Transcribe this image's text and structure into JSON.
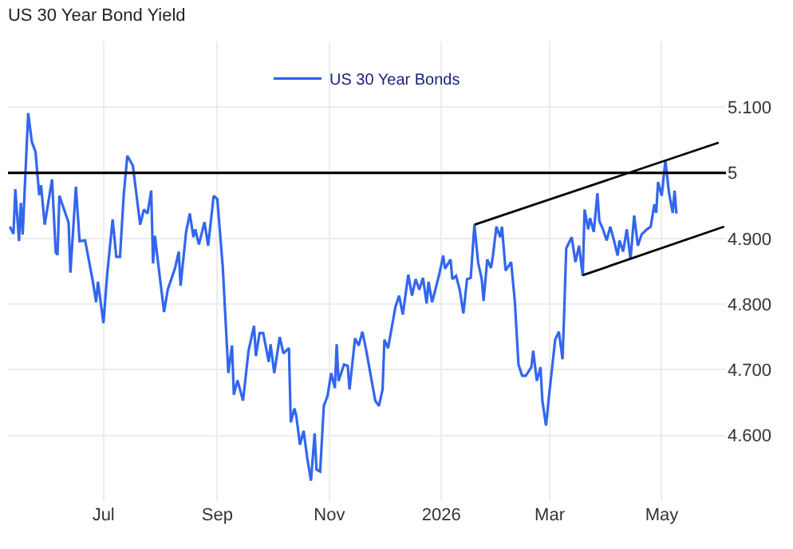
{
  "chart_data": {
    "type": "line",
    "title": "US 30 Year Bond Yield",
    "x": [
      "2025-05-11",
      "2025-05-13",
      "2025-05-14",
      "2025-05-16",
      "2025-05-17",
      "2025-05-18",
      "2025-05-21",
      "2025-05-23",
      "2025-05-25",
      "2025-05-27",
      "2025-05-28",
      "2025-05-30",
      "2025-06-03",
      "2025-06-05",
      "2025-06-06",
      "2025-06-07",
      "2025-06-12",
      "2025-06-13",
      "2025-06-16",
      "2025-06-18",
      "2025-06-21",
      "2025-06-25",
      "2025-06-27",
      "2025-06-28",
      "2025-07-01",
      "2025-07-03",
      "2025-07-06",
      "2025-07-08",
      "2025-07-10",
      "2025-07-12",
      "2025-07-14",
      "2025-07-17",
      "2025-07-21",
      "2025-07-23",
      "2025-07-25",
      "2025-07-27",
      "2025-07-28",
      "2025-07-29",
      "2025-08-01",
      "2025-08-03",
      "2025-08-05",
      "2025-08-09",
      "2025-08-11",
      "2025-08-12",
      "2025-08-15",
      "2025-08-17",
      "2025-08-19",
      "2025-08-20",
      "2025-08-22",
      "2025-08-25",
      "2025-08-27",
      "2025-08-30",
      "2025-09-01",
      "2025-09-04",
      "2025-09-07",
      "2025-09-09",
      "2025-09-10",
      "2025-09-12",
      "2025-09-15",
      "2025-09-18",
      "2025-09-21",
      "2025-09-22",
      "2025-09-24",
      "2025-09-26",
      "2025-09-29",
      "2025-09-30",
      "2025-10-02",
      "2025-10-05",
      "2025-10-07",
      "2025-10-10",
      "2025-10-11",
      "2025-10-13",
      "2025-10-14",
      "2025-10-16",
      "2025-10-18",
      "2025-10-20",
      "2025-10-22",
      "2025-10-24",
      "2025-10-25",
      "2025-10-27",
      "2025-10-29",
      "2025-10-31",
      "2025-11-02",
      "2025-11-04",
      "2025-11-05",
      "2025-11-06",
      "2025-11-09",
      "2025-11-11",
      "2025-11-12",
      "2025-11-15",
      "2025-11-17",
      "2025-11-19",
      "2025-11-21",
      "2025-11-26",
      "2025-11-28",
      "2025-11-30",
      "2025-12-01",
      "2025-12-03",
      "2025-12-07",
      "2025-12-09",
      "2025-12-11",
      "2025-12-14",
      "2025-12-16",
      "2025-12-18",
      "2025-12-20",
      "2025-12-22",
      "2025-12-24",
      "2025-12-25",
      "2025-12-27",
      "2025-12-31",
      "2026-01-02",
      "2026-01-03",
      "2026-01-06",
      "2026-01-07",
      "2026-01-09",
      "2026-01-11",
      "2026-01-13",
      "2026-01-15",
      "2026-01-17",
      "2026-01-19",
      "2026-01-21",
      "2026-01-23",
      "2026-01-24",
      "2026-01-26",
      "2026-01-28",
      "2026-01-29",
      "2026-01-31",
      "2026-02-02",
      "2026-02-03",
      "2026-02-05",
      "2026-02-08",
      "2026-02-10",
      "2026-02-12",
      "2026-02-14",
      "2026-02-16",
      "2026-02-19",
      "2026-02-20",
      "2026-02-22",
      "2026-02-24",
      "2026-02-25",
      "2026-02-27",
      "2026-03-01",
      "2026-03-04",
      "2026-03-06",
      "2026-03-08",
      "2026-03-09",
      "2026-03-10",
      "2026-03-13",
      "2026-03-15",
      "2026-03-17",
      "2026-03-19",
      "2026-03-20",
      "2026-03-22",
      "2026-03-23",
      "2026-03-25",
      "2026-03-27",
      "2026-03-28",
      "2026-03-30",
      "2026-04-01",
      "2026-04-03",
      "2026-04-05",
      "2026-04-07",
      "2026-04-08",
      "2026-04-10",
      "2026-04-12",
      "2026-04-14",
      "2026-04-16",
      "2026-04-18",
      "2026-04-20",
      "2026-04-23",
      "2026-04-25",
      "2026-04-27",
      "2026-04-28",
      "2026-04-29",
      "2026-05-01",
      "2026-05-03",
      "2026-05-05",
      "2026-05-07",
      "2026-05-08",
      "2026-05-09"
    ],
    "series": [
      {
        "name": "US 30 Year Bonds",
        "color": "#3366ee",
        "values": [
          4.918,
          4.907,
          4.975,
          4.896,
          4.954,
          4.906,
          5.091,
          5.047,
          5.032,
          4.966,
          4.981,
          4.921,
          4.99,
          4.879,
          4.875,
          4.965,
          4.924,
          4.848,
          4.979,
          4.896,
          4.897,
          4.838,
          4.803,
          4.834,
          4.771,
          4.845,
          4.929,
          4.872,
          4.872,
          4.965,
          5.026,
          5.011,
          4.921,
          4.944,
          4.938,
          4.973,
          4.862,
          4.904,
          4.834,
          4.788,
          4.822,
          4.855,
          4.88,
          4.828,
          4.91,
          4.938,
          4.902,
          4.914,
          4.891,
          4.925,
          4.889,
          4.965,
          4.96,
          4.855,
          4.695,
          4.737,
          4.662,
          4.684,
          4.653,
          4.729,
          4.767,
          4.721,
          4.756,
          4.756,
          4.712,
          4.739,
          4.695,
          4.75,
          4.725,
          4.733,
          4.62,
          4.641,
          4.63,
          4.586,
          4.607,
          4.565,
          4.531,
          4.603,
          4.548,
          4.545,
          4.645,
          4.66,
          4.695,
          4.672,
          4.739,
          4.683,
          4.708,
          4.706,
          4.67,
          4.748,
          4.737,
          4.758,
          4.731,
          4.653,
          4.645,
          4.67,
          4.746,
          4.733,
          4.796,
          4.813,
          4.784,
          4.845,
          4.813,
          4.838,
          4.822,
          4.84,
          4.801,
          4.834,
          4.803,
          4.847,
          4.874,
          4.854,
          4.868,
          4.838,
          4.843,
          4.822,
          4.786,
          4.838,
          4.84,
          4.921,
          4.864,
          4.838,
          4.805,
          4.868,
          4.855,
          4.872,
          4.918,
          4.902,
          4.918,
          4.851,
          4.864,
          4.805,
          4.708,
          4.691,
          4.691,
          4.704,
          4.729,
          4.683,
          4.704,
          4.653,
          4.615,
          4.67,
          4.746,
          4.758,
          4.716,
          4.796,
          4.885,
          4.902,
          4.864,
          4.889,
          4.843,
          4.944,
          4.914,
          4.931,
          4.91,
          4.969,
          4.927,
          4.914,
          4.897,
          4.918,
          4.897,
          4.874,
          4.897,
          4.88,
          4.914,
          4.868,
          4.935,
          4.889,
          4.906,
          4.914,
          4.918,
          4.952,
          4.939,
          4.986,
          4.965,
          5.019,
          4.969,
          4.939,
          4.973,
          4.938
        ]
      },
      {
        "type": "line",
        "color": "#000000",
        "x": [
          "2026-01-19",
          "2026-06-01"
        ],
        "values": [
          4.921,
          5.046
        ]
      },
      {
        "type": "line",
        "color": "#000000",
        "x": [
          "2026-03-19",
          "2026-06-04"
        ],
        "values": [
          4.844,
          4.918
        ]
      }
    ],
    "xlim": [
      "2025-05-10",
      "2026-06-05"
    ],
    "xticks": [
      {
        "value": "2025-07-01",
        "label": "Jul"
      },
      {
        "value": "2025-09-01",
        "label": "Sep"
      },
      {
        "value": "2025-11-01",
        "label": "Nov"
      },
      {
        "value": "2026-01-01",
        "label": "2026"
      },
      {
        "value": "2026-03-01",
        "label": "Mar"
      },
      {
        "value": "2026-05-01",
        "label": "May"
      }
    ],
    "ylim": [
      4.5,
      5.2
    ],
    "yticks": [
      {
        "value": 4.6,
        "label": "4.600"
      },
      {
        "value": 4.7,
        "label": "4.700"
      },
      {
        "value": 4.8,
        "label": "4.800"
      },
      {
        "value": 4.9,
        "label": "4.900"
      },
      5,
      {
        "value": 5.1,
        "label": "5.100"
      }
    ],
    "ref_lines": [
      {
        "axis": "y",
        "value": 5,
        "color": "#000000"
      }
    ],
    "grid": true,
    "legend": "top",
    "marker": "none",
    "line_style": "solid"
  }
}
